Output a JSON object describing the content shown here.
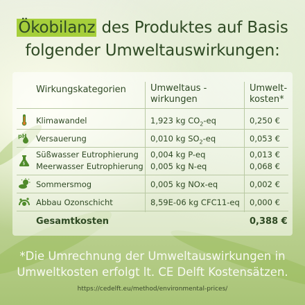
{
  "headline": {
    "highlight": "Ökobilanz",
    "line1_rest": " des Produktes auf Basis",
    "line2": "folgender Umweltauswirkungen:"
  },
  "table": {
    "col_category": "Wirkungskategorien",
    "col_impact_line1": "Umweltaus -",
    "col_impact_line2": "wirkungen",
    "col_cost_line1": "Umwelt-",
    "col_cost_line2": "kosten*",
    "rows": [
      {
        "icon": "thermometer-icon",
        "category": "Klimawandel",
        "impact_base": "1,923 kg CO",
        "impact_sub": "2",
        "impact_tail": "-eq",
        "cost": "0,250 €"
      },
      {
        "icon": "ph-acid-icon",
        "category": "Versauerung",
        "impact_base": "0,010 kg SO",
        "impact_sub": "2",
        "impact_tail": "-eq",
        "cost": "0,053 €"
      },
      {
        "icon": "flask-icon",
        "category": "Süßwasser Eutrophierung",
        "impact": "0,004 kg P-eq",
        "cost": "0,013 €",
        "category2": "Meerwasser Eutrophierung",
        "impact2": "0,005 kg N-eq",
        "cost2": "0,068 €"
      },
      {
        "icon": "smog-sun-icon",
        "category": "Sommersmog",
        "impact": "0,005 kg NOx-eq",
        "cost": "0,002 €"
      },
      {
        "icon": "ozone-layer-icon",
        "category": "Abbau Ozonschicht",
        "impact": "8,59E-06 kg CFC11-eq",
        "cost": "0,000  €"
      }
    ],
    "total_label": "Gesamtkosten",
    "total_value": "0,388 €"
  },
  "footnote_line1": "*Die Umrechnung der Umweltauswirkungen in",
  "footnote_line2": "Umweltkosten erfolgt lt. CE Delft Kostensätzen.",
  "source_url": "https://cedelft.eu/method/environmental-prices/",
  "colors": {
    "accent": "#a6cf3b",
    "text": "#2f4a24",
    "icon": "#4f8a2b"
  }
}
